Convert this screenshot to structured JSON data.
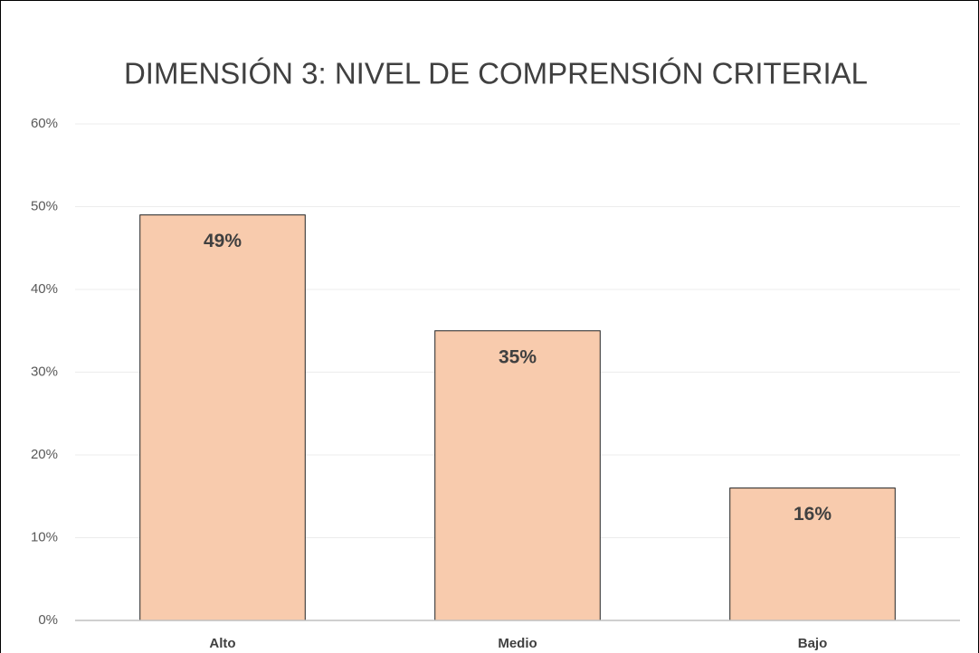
{
  "chart_data": {
    "type": "bar",
    "title": "DIMENSIÓN 3: NIVEL DE COMPRENSIÓN CRITERIAL",
    "categories": [
      "Alto",
      "Medio",
      "Bajo"
    ],
    "values": [
      49,
      35,
      16
    ],
    "value_labels": [
      "49%",
      "35%",
      "16%"
    ],
    "color": "#f8cbad",
    "ylim": [
      0,
      60
    ],
    "yticks": [
      {
        "value": 0,
        "label": "0%"
      },
      {
        "value": 10,
        "label": "10%"
      },
      {
        "value": 20,
        "label": "20%"
      },
      {
        "value": 30,
        "label": "30%"
      },
      {
        "value": 40,
        "label": "40%"
      },
      {
        "value": 50,
        "label": "50%"
      },
      {
        "value": 60,
        "label": "60%"
      }
    ],
    "grid": true
  }
}
